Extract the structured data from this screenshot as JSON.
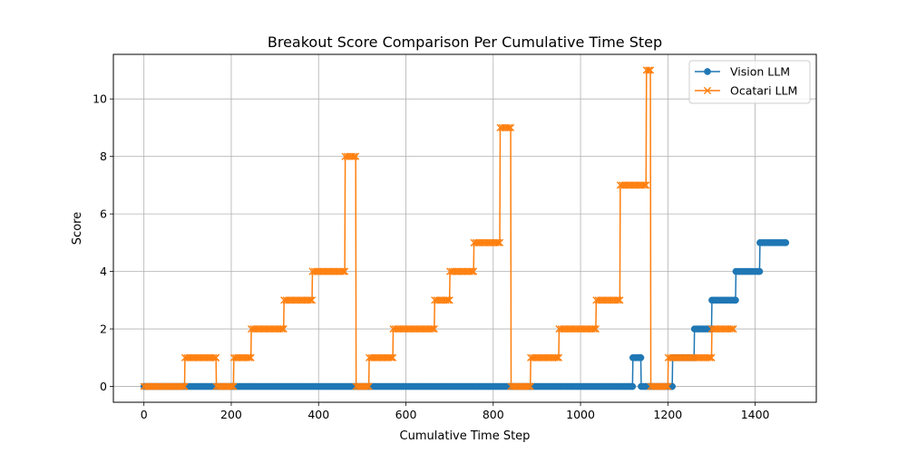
{
  "chart_data": {
    "type": "line",
    "title": "Breakout Score Comparison Per Cumulative Time Step",
    "xlabel": "Cumulative Time Step",
    "ylabel": "Score",
    "xlim": [
      -70,
      1540
    ],
    "ylim": [
      -0.55,
      11.55
    ],
    "xticks": [
      0,
      200,
      400,
      600,
      800,
      1000,
      1200,
      1400
    ],
    "yticks": [
      0,
      2,
      4,
      6,
      8,
      10
    ],
    "grid": true,
    "legend": "top-right",
    "series": [
      {
        "name": "Vision LLM",
        "color": "#1f77b4",
        "marker": "circle",
        "segments": [
          {
            "x0": 0,
            "x1": 1119,
            "y": 0
          },
          {
            "x0": 1120,
            "x1": 1138,
            "y": 1
          },
          {
            "x0": 1139,
            "x1": 1210,
            "y": 0
          },
          {
            "x0": 1211,
            "x1": 1260,
            "y": 1
          },
          {
            "x0": 1261,
            "x1": 1300,
            "y": 2
          },
          {
            "x0": 1301,
            "x1": 1355,
            "y": 3
          },
          {
            "x0": 1356,
            "x1": 1410,
            "y": 4
          },
          {
            "x0": 1411,
            "x1": 1470,
            "y": 5
          }
        ]
      },
      {
        "name": "Ocatari LLM",
        "color": "#ff7f0e",
        "marker": "x",
        "segments": [
          {
            "x0": 0,
            "x1": 93,
            "y": 0
          },
          {
            "x0": 94,
            "x1": 165,
            "y": 1
          },
          {
            "x0": 166,
            "x1": 205,
            "y": 0
          },
          {
            "x0": 206,
            "x1": 245,
            "y": 1
          },
          {
            "x0": 246,
            "x1": 320,
            "y": 2
          },
          {
            "x0": 321,
            "x1": 385,
            "y": 3
          },
          {
            "x0": 386,
            "x1": 460,
            "y": 4
          },
          {
            "x0": 461,
            "x1": 485,
            "y": 8
          },
          {
            "x0": 486,
            "x1": 515,
            "y": 0
          },
          {
            "x0": 516,
            "x1": 570,
            "y": 1
          },
          {
            "x0": 571,
            "x1": 665,
            "y": 2
          },
          {
            "x0": 666,
            "x1": 700,
            "y": 3
          },
          {
            "x0": 701,
            "x1": 755,
            "y": 4
          },
          {
            "x0": 756,
            "x1": 815,
            "y": 5
          },
          {
            "x0": 816,
            "x1": 840,
            "y": 9
          },
          {
            "x0": 841,
            "x1": 885,
            "y": 0
          },
          {
            "x0": 886,
            "x1": 950,
            "y": 1
          },
          {
            "x0": 951,
            "x1": 1035,
            "y": 2
          },
          {
            "x0": 1036,
            "x1": 1090,
            "y": 3
          },
          {
            "x0": 1091,
            "x1": 1150,
            "y": 7
          },
          {
            "x0": 1151,
            "x1": 1160,
            "y": 11
          },
          {
            "x0": 1161,
            "x1": 1200,
            "y": 0
          },
          {
            "x0": 1201,
            "x1": 1300,
            "y": 1
          },
          {
            "x0": 1301,
            "x1": 1350,
            "y": 2
          }
        ]
      }
    ]
  }
}
